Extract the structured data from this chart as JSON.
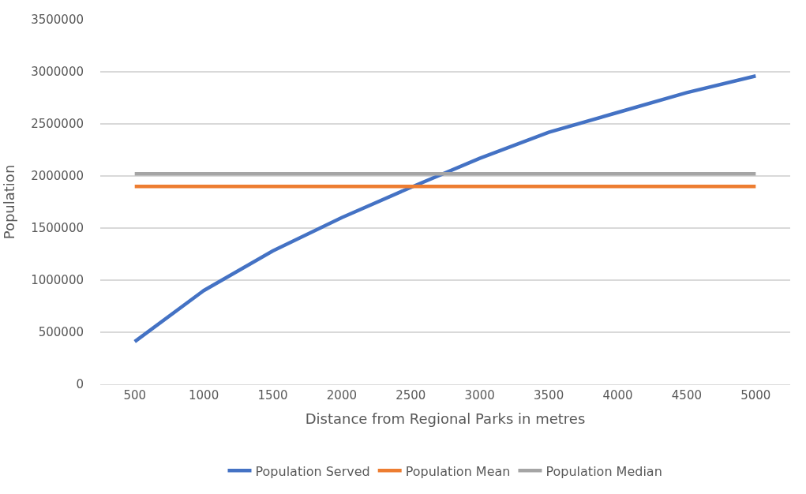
{
  "chart_data": {
    "type": "line",
    "xlabel": "Distance from Regional Parks in metres",
    "ylabel": "Population",
    "categories": [
      "500",
      "1000",
      "1500",
      "2000",
      "2500",
      "3000",
      "3500",
      "4000",
      "4500",
      "5000"
    ],
    "series": [
      {
        "name": "Population Served",
        "color": "#4472c4",
        "values": [
          410000,
          900000,
          1280000,
          1600000,
          1890000,
          2170000,
          2420000,
          2610000,
          2800000,
          2960000
        ]
      },
      {
        "name": "Population Mean",
        "color": "#ed7d31",
        "values": [
          1900000,
          1900000,
          1900000,
          1900000,
          1900000,
          1900000,
          1900000,
          1900000,
          1900000,
          1900000
        ]
      },
      {
        "name": "Population Median",
        "color": "#a5a5a5",
        "values": [
          2020000,
          2020000,
          2020000,
          2020000,
          2020000,
          2020000,
          2020000,
          2020000,
          2020000,
          2020000
        ]
      }
    ],
    "ylim": [
      0,
      3500000
    ],
    "yticks": [
      0,
      500000,
      1000000,
      1500000,
      2000000,
      2500000,
      3000000,
      3500000
    ],
    "grid": "y",
    "legend": "bottom",
    "marker": "none",
    "line_style": "solid"
  }
}
